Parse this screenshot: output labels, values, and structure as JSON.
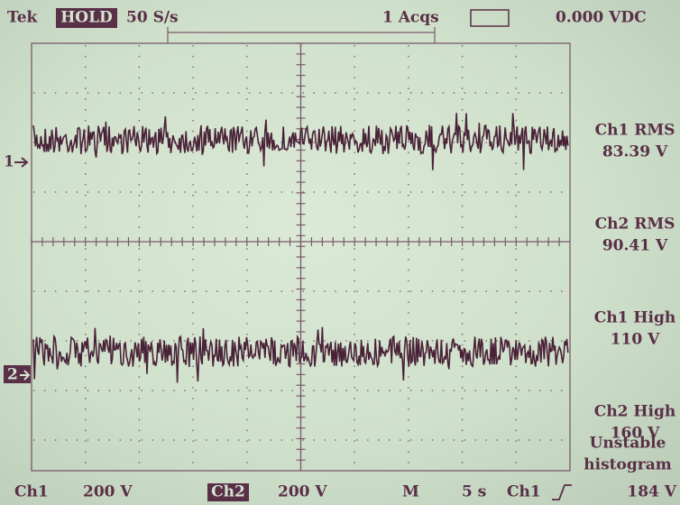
{
  "header": {
    "brand": "Tek",
    "mode": "HOLD",
    "rate": "50 S/s",
    "acqs": "1 Acqs",
    "trigger_level": "0.000 VDC"
  },
  "markers": [
    "1",
    "2"
  ],
  "measurements": [
    {
      "label": "Ch1 RMS",
      "value": "83.39 V"
    },
    {
      "label": "Ch2 RMS",
      "value": "90.41 V"
    },
    {
      "label": "Ch1 High",
      "value": "110 V"
    },
    {
      "label": "Ch2 High",
      "value": "160 V"
    }
  ],
  "status": [
    "Unstable",
    "histogram"
  ],
  "footer": {
    "ch1": "Ch1",
    "ch1_scale": "200 V",
    "ch2": "Ch2",
    "ch2_scale": "200 V",
    "timebase_label": "M",
    "timebase": "5 s",
    "trigger_source": "Ch1",
    "trigger_level": "184 V"
  }
}
